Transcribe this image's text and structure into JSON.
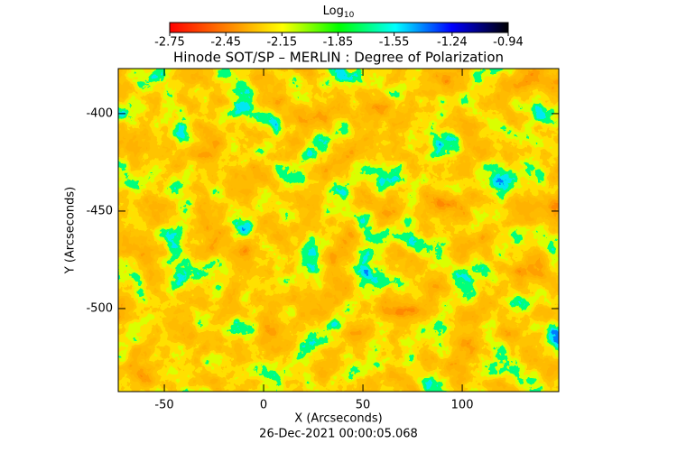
{
  "chart_data": {
    "type": "heatmap",
    "title": "Hinode SOT/SP – MERLIN : Degree of Polarization",
    "colorbar_label": "Log",
    "colorbar_label_sub": "10",
    "colorbar_colors": [
      "#ff0000",
      "#ff8000",
      "#ffff00",
      "#00ff00",
      "#00ffff",
      "#0000ff",
      "#000000"
    ],
    "clim": [
      -2.75,
      -0.94
    ],
    "cticks": [
      -2.75,
      -2.45,
      -2.15,
      -1.85,
      -1.55,
      -1.24,
      -0.94
    ],
    "xlabel": "X (Arcseconds)",
    "ylabel": "Y (Arcseconds)",
    "xlim": [
      -73.2,
      148.6
    ],
    "xticks": [
      -50,
      0,
      50,
      100
    ],
    "ylim": [
      -542.6,
      -376.9
    ],
    "yticks": [
      -500,
      -450,
      -400
    ],
    "footer": "26-Dec-2021 00:00:05.068"
  }
}
